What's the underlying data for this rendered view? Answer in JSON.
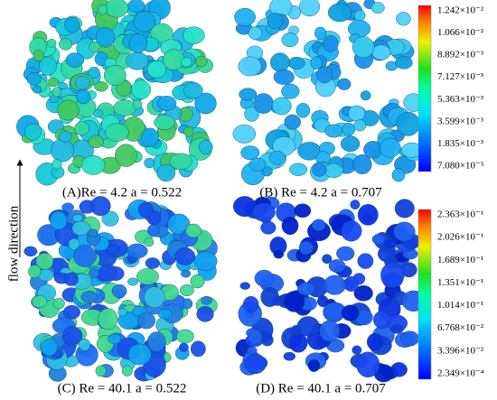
{
  "side_label": "flow direction",
  "panels": [
    {
      "caption": "(A)Re = 4.2 a = 0.522"
    },
    {
      "caption": "(B) Re = 4.2 a = 0.707"
    },
    {
      "caption": "(C) Re = 40.1 a = 0.522"
    },
    {
      "caption": "(D) Re = 40.1 a = 0.707"
    }
  ],
  "colorbars": [
    {
      "labels": [
        "1.242×10⁻²",
        "1.066×10⁻²",
        "8.892×10⁻³",
        "7.127×10⁻³",
        "5.363×10⁻³",
        "3.599×10⁻³",
        "1.835×10⁻³",
        "7.080×10⁻⁵"
      ]
    },
    {
      "labels": [
        "2.363×10⁻¹",
        "2.026×10⁻¹",
        "1.689×10⁻¹",
        "1.351×10⁻¹",
        "1.014×10⁻¹",
        "6.768×10⁻²",
        "3.396×10⁻²",
        "2.349×10⁻⁴"
      ]
    }
  ]
}
